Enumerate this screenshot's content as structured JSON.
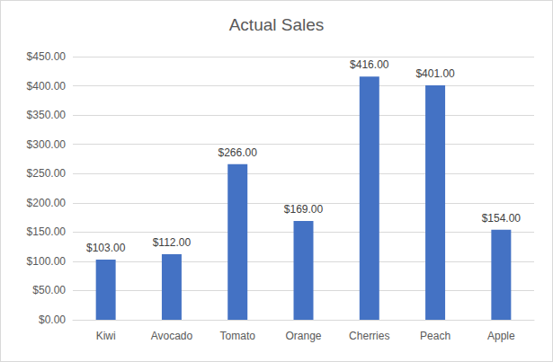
{
  "chart_data": {
    "type": "bar",
    "title": "Actual Sales",
    "categories": [
      "Kiwi",
      "Avocado",
      "Tomato",
      "Orange",
      "Cherries",
      "Peach",
      "Apple"
    ],
    "values": [
      103,
      112,
      266,
      169,
      416,
      401,
      154
    ],
    "value_labels": [
      "$103.00",
      "$112.00",
      "$266.00",
      "$169.00",
      "$416.00",
      "$401.00",
      "$154.00"
    ],
    "data_labels": true,
    "color": "#4472c4",
    "ylim": [
      0,
      450
    ],
    "yticks": [
      {
        "value": 0,
        "label": "$0.00"
      },
      {
        "value": 50,
        "label": "$50.00"
      },
      {
        "value": 100,
        "label": "$100.00"
      },
      {
        "value": 150,
        "label": "$150.00"
      },
      {
        "value": 200,
        "label": "$200.00"
      },
      {
        "value": 250,
        "label": "$250.00"
      },
      {
        "value": 300,
        "label": "$300.00"
      },
      {
        "value": 350,
        "label": "$350.00"
      },
      {
        "value": 400,
        "label": "$400.00"
      },
      {
        "value": 450,
        "label": "$450.00"
      }
    ],
    "grid": true
  }
}
